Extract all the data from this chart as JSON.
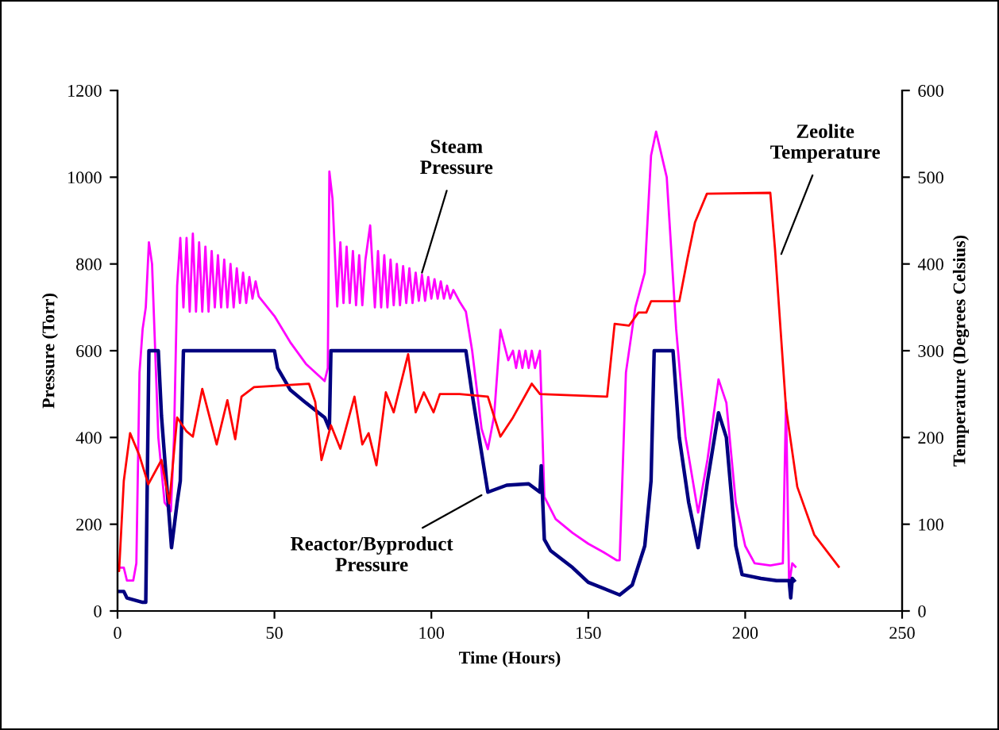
{
  "chart_data": {
    "type": "line",
    "xlabel": "Time (Hours)",
    "ylabel": "Pressure (Torr)",
    "y2label": "Temperature (Degrees Celsius)",
    "xlim": [
      0,
      250
    ],
    "xticks": [
      0,
      50,
      100,
      150,
      200,
      250
    ],
    "ylim": [
      0,
      1200
    ],
    "yticks": [
      0,
      200,
      400,
      600,
      800,
      1000,
      1200
    ],
    "y2lim": [
      0,
      600
    ],
    "y2ticks": [
      0,
      100,
      200,
      300,
      400,
      500,
      600
    ],
    "grid": false,
    "legend": false,
    "series": [
      {
        "color": "#ff00ff",
        "x": [
          0,
          2,
          3,
          5,
          6,
          7,
          8,
          9,
          10,
          11,
          12,
          13,
          15,
          17,
          18,
          19,
          20,
          21,
          22,
          23,
          24,
          25,
          26,
          27,
          28,
          29,
          30,
          31,
          32,
          33,
          34,
          35,
          36,
          37,
          38,
          39,
          40,
          41,
          42,
          43,
          44,
          45,
          50,
          55,
          60,
          66,
          67,
          67.5,
          68.5,
          70,
          71,
          72,
          73,
          74,
          75,
          76,
          77,
          78,
          79,
          80.5,
          82,
          83,
          84,
          85,
          86,
          87,
          88,
          89,
          90,
          91,
          92,
          93,
          94,
          95,
          96,
          97,
          98,
          99,
          100,
          101,
          102,
          103,
          104,
          105,
          106,
          107,
          109,
          111,
          113,
          116,
          118,
          120,
          122,
          124.5,
          126,
          127,
          128,
          129,
          130,
          131,
          132,
          133,
          134.6,
          136,
          139.6,
          145,
          150,
          155,
          159,
          160,
          162,
          165,
          168,
          170,
          171.6,
          175,
          178,
          181,
          185,
          188,
          191.5,
          194,
          197,
          200,
          203,
          208,
          212,
          213,
          214,
          215,
          216
        ],
        "values": [
          100,
          100,
          70,
          70,
          110,
          550,
          650,
          700,
          850,
          800,
          600,
          400,
          250,
          230,
          400,
          750,
          860,
          700,
          860,
          690,
          870,
          690,
          850,
          690,
          840,
          690,
          830,
          700,
          820,
          700,
          810,
          700,
          800,
          700,
          790,
          710,
          780,
          710,
          770,
          720,
          760,
          725,
          680,
          620,
          570,
          530,
          560,
          1013,
          950,
          702,
          850,
          710,
          840,
          710,
          830,
          705,
          820,
          705,
          810,
          889,
          700,
          830,
          700,
          820,
          700,
          810,
          705,
          800,
          705,
          795,
          710,
          790,
          710,
          780,
          715,
          775,
          715,
          770,
          720,
          765,
          720,
          760,
          720,
          750,
          720,
          740,
          713,
          690,
          600,
          420,
          373,
          450,
          648,
          578,
          600,
          560,
          600,
          560,
          600,
          560,
          600,
          560,
          600,
          263,
          212,
          180,
          155,
          135,
          117,
          117,
          550,
          700,
          780,
          1050,
          1105,
          1000,
          650,
          400,
          227,
          350,
          534,
          480,
          250,
          150,
          110,
          105,
          110,
          480,
          60,
          110,
          102
        ]
      },
      {
        "color": "#000080",
        "x": [
          0,
          2,
          3,
          8,
          9,
          10,
          13,
          14,
          17.2,
          19,
          20,
          21,
          22,
          50,
          51,
          55,
          60,
          66,
          67.5,
          68,
          70,
          111,
          113,
          118,
          124,
          131,
          134.6,
          135,
          136,
          138,
          145,
          150,
          160,
          164,
          168,
          170,
          171,
          177,
          179,
          182,
          185,
          188,
          191.5,
          194,
          197,
          199,
          205,
          210,
          214,
          214.5,
          215,
          215.6
        ],
        "values": [
          45,
          45,
          30,
          20,
          20,
          600,
          600,
          450,
          146,
          250,
          300,
          600,
          600,
          600,
          560,
          510,
          480,
          446,
          420,
          600,
          600,
          600,
          500,
          274,
          290,
          293,
          274,
          335,
          165,
          139,
          100,
          66,
          37,
          60,
          150,
          300,
          600,
          600,
          400,
          250,
          146,
          300,
          457,
          400,
          150,
          84,
          75,
          70,
          70,
          30,
          75,
          70
        ]
      },
      {
        "axis": "y2",
        "color": "#ff0000",
        "x": [
          0,
          0.5,
          2,
          4,
          7,
          9.8,
          14,
          16.5,
          19,
          22,
          24,
          27,
          31.6,
          35,
          37.5,
          39.5,
          43.5,
          61,
          63,
          65,
          68,
          71,
          75.5,
          78,
          80,
          82.5,
          85.5,
          88,
          92.6,
          95,
          97.6,
          100.7,
          102.7,
          109,
          118,
          122,
          126,
          132,
          134.6,
          156,
          158.4,
          163,
          166,
          168.5,
          170,
          179,
          181.6,
          184,
          187.8,
          208,
          209.5,
          213,
          216.6,
          222,
          229.8
        ],
        "values": [
          46,
          46,
          150,
          205,
          179,
          146,
          174,
          124,
          223,
          207,
          201,
          256,
          192,
          243,
          198,
          247,
          258,
          262,
          241,
          174,
          214,
          187,
          247,
          192,
          205,
          168,
          252,
          229,
          296,
          229,
          252,
          229,
          250,
          250,
          247,
          201,
          223,
          262,
          250,
          247,
          331,
          329,
          344,
          344,
          357,
          357,
          406,
          448,
          481,
          482,
          417,
          234,
          143,
          88,
          51
        ]
      }
    ],
    "annotations": [
      {
        "text": "Steam\nPressure",
        "x": 97,
        "y": 780
      },
      {
        "text": "Reactor/Byproduct\nPressure",
        "x": 116,
        "y": 267
      },
      {
        "text": "Zeolite\nTemperature",
        "x": 211.5,
        "y": 823
      }
    ]
  }
}
